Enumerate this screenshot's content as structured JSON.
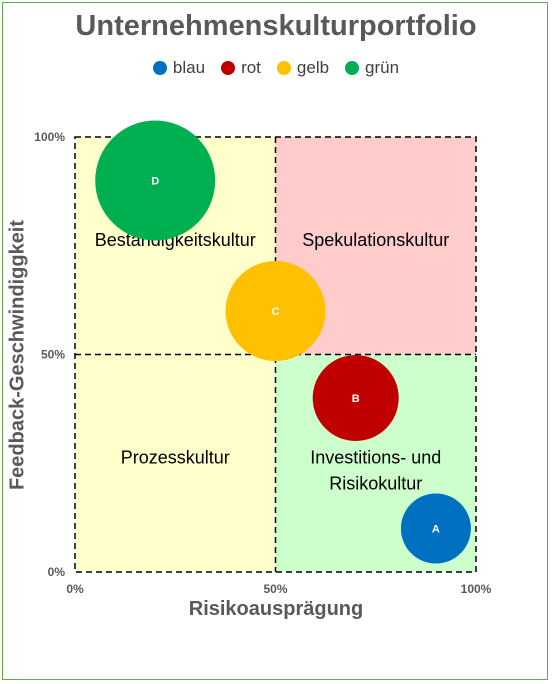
{
  "chart_data": {
    "type": "scatter",
    "subtype": "bubble",
    "title": "Unternehmenskulturportfolio",
    "xlabel": "Risikoausprägung",
    "ylabel": "Feedback-Geschwindiggkeit",
    "xlim": [
      0,
      100
    ],
    "ylim": [
      0,
      100
    ],
    "x_ticks": [
      "0%",
      "50%",
      "100%"
    ],
    "y_ticks": [
      "0%",
      "50%",
      "100%"
    ],
    "grid": false,
    "legend_position": "top",
    "legend": [
      {
        "name": "blau",
        "color": "#0070c0"
      },
      {
        "name": "rot",
        "color": "#c00000"
      },
      {
        "name": "gelb",
        "color": "#ffc000"
      },
      {
        "name": "grün",
        "color": "#00b050"
      }
    ],
    "series": [
      {
        "label": "A",
        "x": 90,
        "y": 10,
        "size": 35,
        "color": "#0070c0"
      },
      {
        "label": "B",
        "x": 70,
        "y": 40,
        "size": 43,
        "color": "#c00000"
      },
      {
        "label": "C",
        "x": 50,
        "y": 60,
        "size": 50,
        "color": "#ffc000"
      },
      {
        "label": "D",
        "x": 20,
        "y": 90,
        "size": 60,
        "color": "#00b050"
      }
    ],
    "quadrants": [
      {
        "label": "Beständigkeitskultur",
        "x_range": [
          0,
          50
        ],
        "y_range": [
          50,
          100
        ],
        "color": "#ffffcc"
      },
      {
        "label": "Spekulationskultur",
        "x_range": [
          50,
          100
        ],
        "y_range": [
          50,
          100
        ],
        "color": "#ffcccc"
      },
      {
        "label": "Prozesskultur",
        "x_range": [
          0,
          50
        ],
        "y_range": [
          0,
          50
        ],
        "color": "#ffffcc"
      },
      {
        "label": "Investitions- und\nRisikokultur",
        "x_range": [
          50,
          100
        ],
        "y_range": [
          0,
          50
        ],
        "color": "#ccffcc"
      }
    ]
  }
}
